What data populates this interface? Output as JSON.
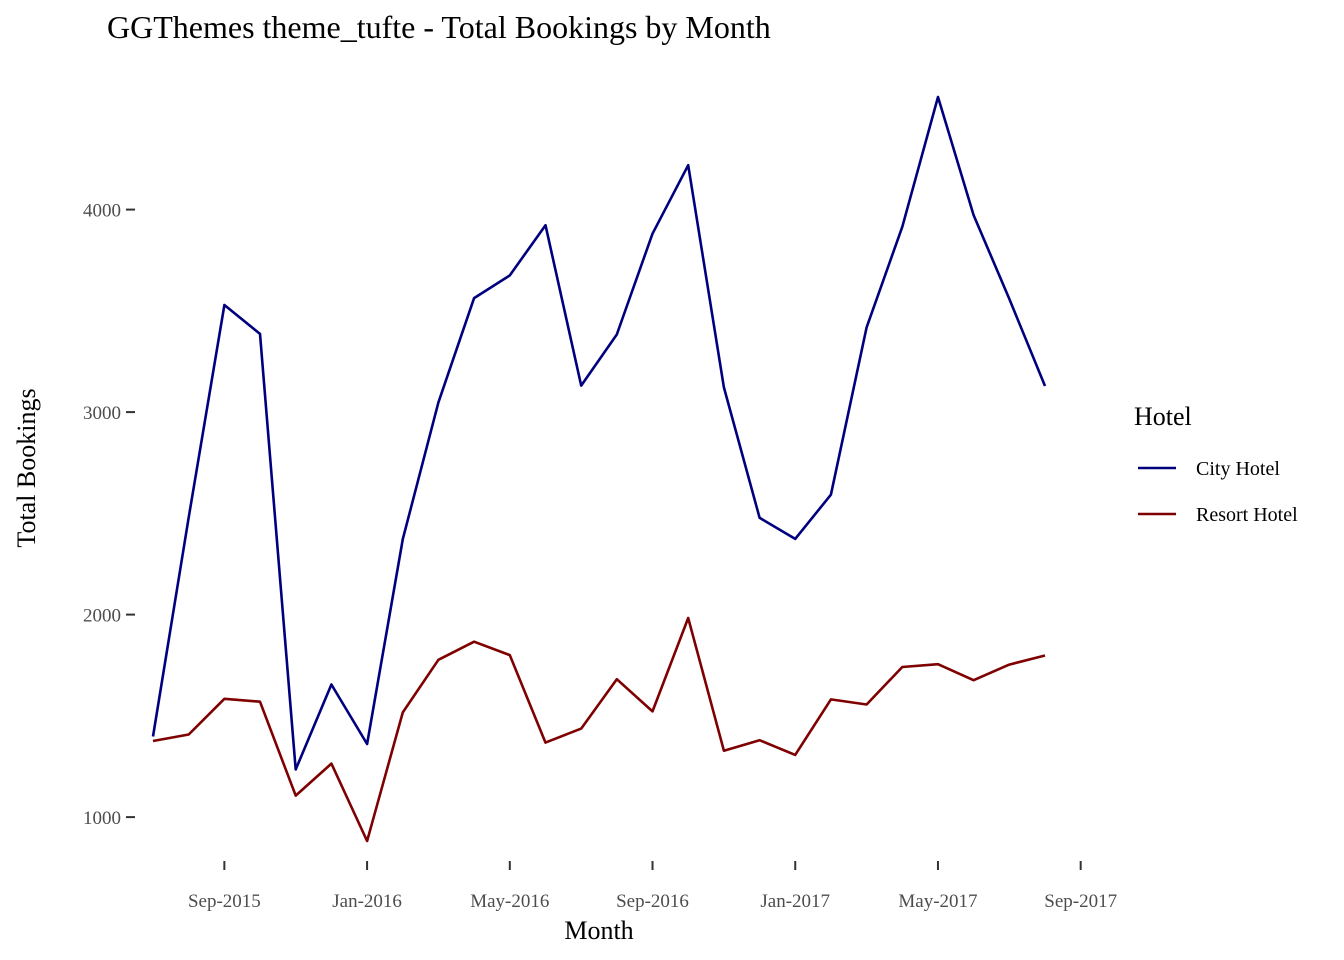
{
  "chart_data": {
    "type": "line",
    "title": "GGThemes theme_tufte - Total Bookings by Month",
    "xlabel": "Month",
    "ylabel": "Total Bookings",
    "x": [
      "2015-07",
      "2015-08",
      "2015-09",
      "2015-10",
      "2015-11",
      "2015-12",
      "2016-01",
      "2016-02",
      "2016-03",
      "2016-04",
      "2016-05",
      "2016-06",
      "2016-07",
      "2016-08",
      "2016-09",
      "2016-10",
      "2016-11",
      "2016-12",
      "2017-01",
      "2017-02",
      "2017-03",
      "2017-04",
      "2017-05",
      "2017-06",
      "2017-07",
      "2017-08"
    ],
    "x_ticks": [
      "2015-09",
      "2016-01",
      "2016-05",
      "2016-09",
      "2017-01",
      "2017-05",
      "2017-09"
    ],
    "x_tick_labels": [
      "Sep-2015",
      "Jan-2016",
      "May-2016",
      "Sep-2016",
      "Jan-2017",
      "May-2017",
      "Sep-2017"
    ],
    "xlim": [
      "2015-07",
      "2017-09"
    ],
    "y_ticks": [
      1000,
      2000,
      3000,
      4000
    ],
    "y_tick_labels": [
      "1000",
      "2000",
      "3000",
      "4000"
    ],
    "ylim": [
      800,
      4700
    ],
    "grid": false,
    "legend": {
      "title": "Hotel",
      "placement": "right"
    },
    "series": [
      {
        "name": "City Hotel",
        "color": "#00007f",
        "values": [
          1398,
          2480,
          3529,
          3386,
          1235,
          1655,
          1361,
          2373,
          3048,
          3563,
          3675,
          3923,
          3131,
          3383,
          3881,
          4219,
          3122,
          2478,
          2374,
          2592,
          3418,
          3915,
          4556,
          3973,
          3559,
          3129
        ]
      },
      {
        "name": "Resort Hotel",
        "color": "#7f0000",
        "values": [
          1376,
          1408,
          1584,
          1570,
          1106,
          1264,
          882,
          1517,
          1777,
          1866,
          1800,
          1368,
          1437,
          1681,
          1522,
          1983,
          1328,
          1380,
          1307,
          1581,
          1556,
          1741,
          1755,
          1676,
          1753,
          1798
        ]
      }
    ]
  }
}
